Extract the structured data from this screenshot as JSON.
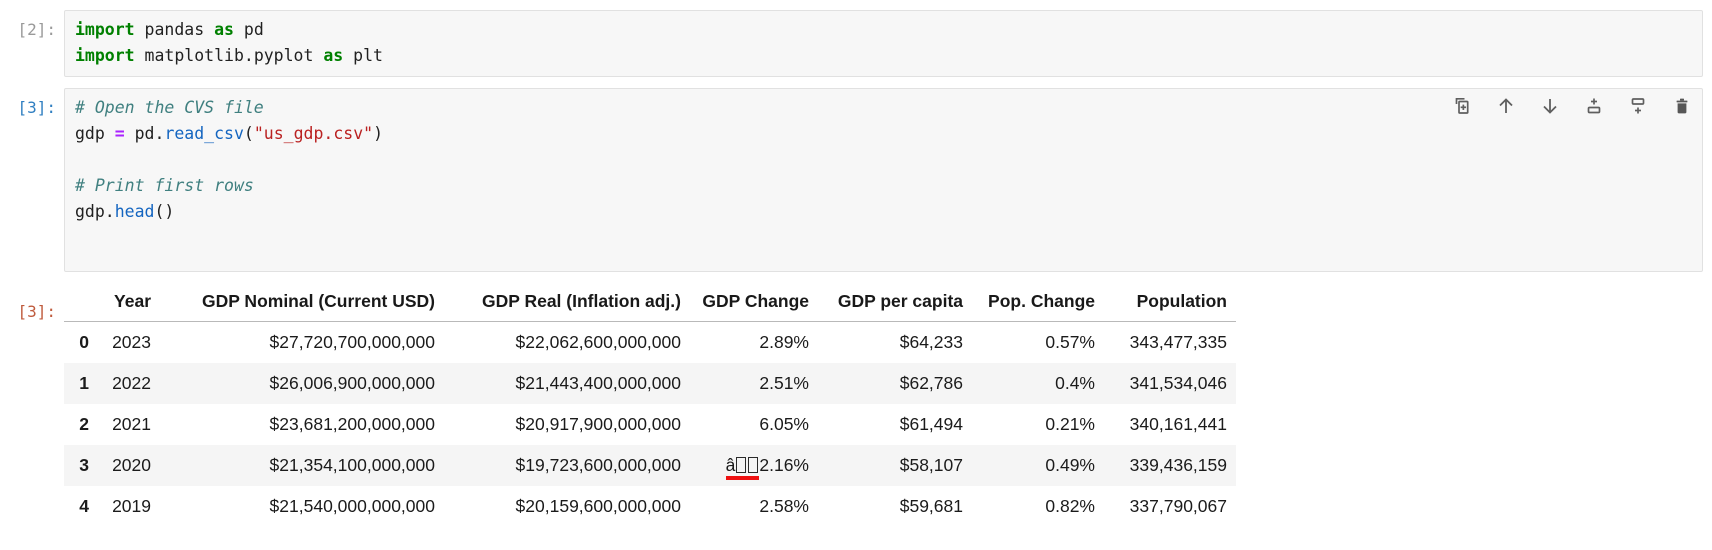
{
  "colors": {
    "cell_background": "#f7f7f7",
    "cell_border": "#e1e1e1",
    "input_prompt_executed": "#9a9a9a",
    "input_prompt_active": "#307fc1",
    "output_prompt": "#bf5b3d",
    "keyword": "#008000",
    "operator": "#aa22ff",
    "comment": "#408080",
    "function": "#1465c0",
    "string": "#ba2121",
    "row_stripe": "#f5f5f5",
    "mojibake_underline": "#ee1111",
    "toolbar_icon": "#5f5f5f"
  },
  "cells": [
    {
      "execution_prompt": "[2]:",
      "code_lines": [
        [
          {
            "text": "import",
            "cls": "kw"
          },
          {
            "text": " pandas ",
            "cls": "plain"
          },
          {
            "text": "as",
            "cls": "kw"
          },
          {
            "text": " pd",
            "cls": "plain"
          }
        ],
        [
          {
            "text": "import",
            "cls": "kw"
          },
          {
            "text": " matplotlib.pyplot ",
            "cls": "plain"
          },
          {
            "text": "as",
            "cls": "kw"
          },
          {
            "text": " plt",
            "cls": "plain"
          }
        ]
      ]
    },
    {
      "execution_prompt": "[3]:",
      "code_lines": [
        [
          {
            "text": "# Open the CVS file",
            "cls": "comment"
          }
        ],
        [
          {
            "text": "gdp ",
            "cls": "plain"
          },
          {
            "text": "=",
            "cls": "op"
          },
          {
            "text": " pd.",
            "cls": "plain"
          },
          {
            "text": "read_csv",
            "cls": "func"
          },
          {
            "text": "(",
            "cls": "plain"
          },
          {
            "text": "\"us_gdp.csv\"",
            "cls": "str"
          },
          {
            "text": ")",
            "cls": "plain"
          }
        ],
        [],
        [
          {
            "text": "# Print first rows",
            "cls": "comment"
          }
        ],
        [
          {
            "text": "gdp.",
            "cls": "plain"
          },
          {
            "text": "head",
            "cls": "func"
          },
          {
            "text": "()",
            "cls": "plain"
          }
        ]
      ],
      "toolbar_icons": [
        "duplicate-cell-icon",
        "move-cell-up-icon",
        "move-cell-down-icon",
        "insert-cell-above-icon",
        "insert-cell-below-icon",
        "delete-cell-icon"
      ]
    }
  ],
  "output": {
    "prompt": "[3]:",
    "table": {
      "index_header": "",
      "columns": [
        "Year",
        "GDP Nominal (Current USD)",
        "GDP Real (Inflation adj.)",
        "GDP Change",
        "GDP per capita",
        "Pop. Change",
        "Population"
      ],
      "rows": [
        {
          "index": "0",
          "cells": [
            "2023",
            "$27,720,700,000,000",
            "$22,062,600,000,000",
            "2.89%",
            "$64,233",
            "0.57%",
            "343,477,335"
          ]
        },
        {
          "index": "1",
          "cells": [
            "2022",
            "$26,006,900,000,000",
            "$21,443,400,000,000",
            "2.51%",
            "$62,786",
            "0.4%",
            "341,534,046"
          ]
        },
        {
          "index": "2",
          "cells": [
            "2021",
            "$23,681,200,000,000",
            "$20,917,900,000,000",
            "6.05%",
            "$61,494",
            "0.21%",
            "340,161,441"
          ]
        },
        {
          "index": "3",
          "cells": [
            "2020",
            "$21,354,100,000,000",
            "$19,723,600,000,000",
            {
              "type": "mojibake",
              "underlined_text": "â",
              "missing_glyph_count": 2,
              "text": "2.16%"
            },
            "$58,107",
            "0.49%",
            "339,436,159"
          ]
        },
        {
          "index": "4",
          "cells": [
            "2019",
            "$21,540,000,000,000",
            "$20,159,600,000,000",
            "2.58%",
            "$59,681",
            "0.82%",
            "337,790,067"
          ]
        }
      ]
    }
  }
}
